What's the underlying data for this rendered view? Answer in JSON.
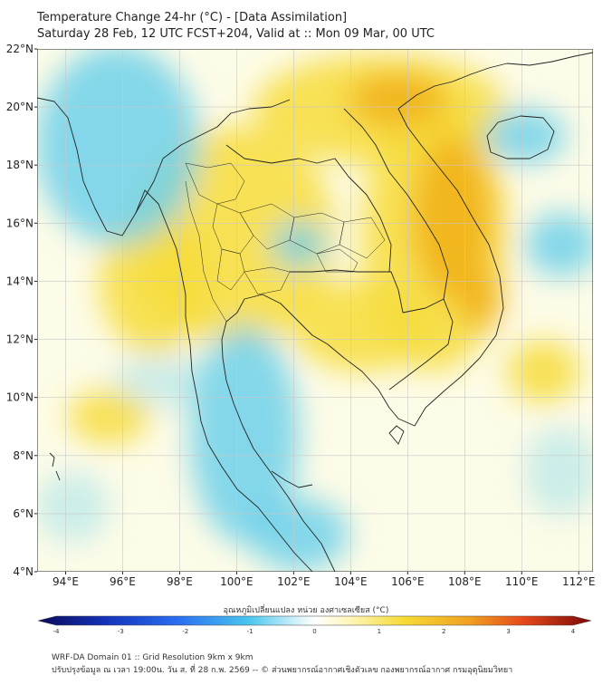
{
  "title": {
    "line1": "Temperature Change 24-hr (°C) - [Data Assimilation]",
    "line2": "Saturday 28 Feb, 12 UTC FCST+204, Valid at :: Mon 09 Mar, 00 UTC"
  },
  "map": {
    "lat_labels": [
      "22°N",
      "20°N",
      "18°N",
      "16°N",
      "14°N",
      "12°N",
      "10°N",
      "8°N",
      "6°N",
      "4°N"
    ],
    "lon_labels": [
      "94°E",
      "96°E",
      "98°E",
      "100°E",
      "102°E",
      "104°E",
      "106°E",
      "108°E",
      "110°E",
      "112°E"
    ],
    "lat_range": [
      4,
      22
    ],
    "lon_range": [
      93,
      112.5
    ],
    "lat_ticks": [
      22,
      20,
      18,
      16,
      14,
      12,
      10,
      8,
      6,
      4
    ],
    "lon_ticks": [
      94,
      96,
      98,
      100,
      102,
      104,
      106,
      108,
      110,
      112
    ],
    "background_color": "#fdfce8",
    "warm_color": "#f7dc3a",
    "strong_warm_color": "#f2b21c",
    "cool_color": "#6fd0ea",
    "border_color": "#222222"
  },
  "colorbar": {
    "title": "อุณหภูมิเปลี่ยนแปลง หน่วย องศาเซลเซียส (°C)",
    "tick_labels": [
      "-4",
      "-3",
      "-2",
      "-1",
      "0",
      "1",
      "2",
      "3",
      "4"
    ],
    "range": [
      -4,
      4
    ]
  },
  "footer": {
    "line1": "WRF-DA Domain 01 :: Grid Resolution 9km x 9km",
    "line2": "ปรับปรุงข้อมูล ณ เวลา 19:00น. วัน ส. ที่ 28 ก.พ. 2569 -- © ส่วนพยากรณ์อากาศเชิงตัวเลข กองพยากรณ์อากาศ กรมอุตุนิยมวิทยา"
  }
}
